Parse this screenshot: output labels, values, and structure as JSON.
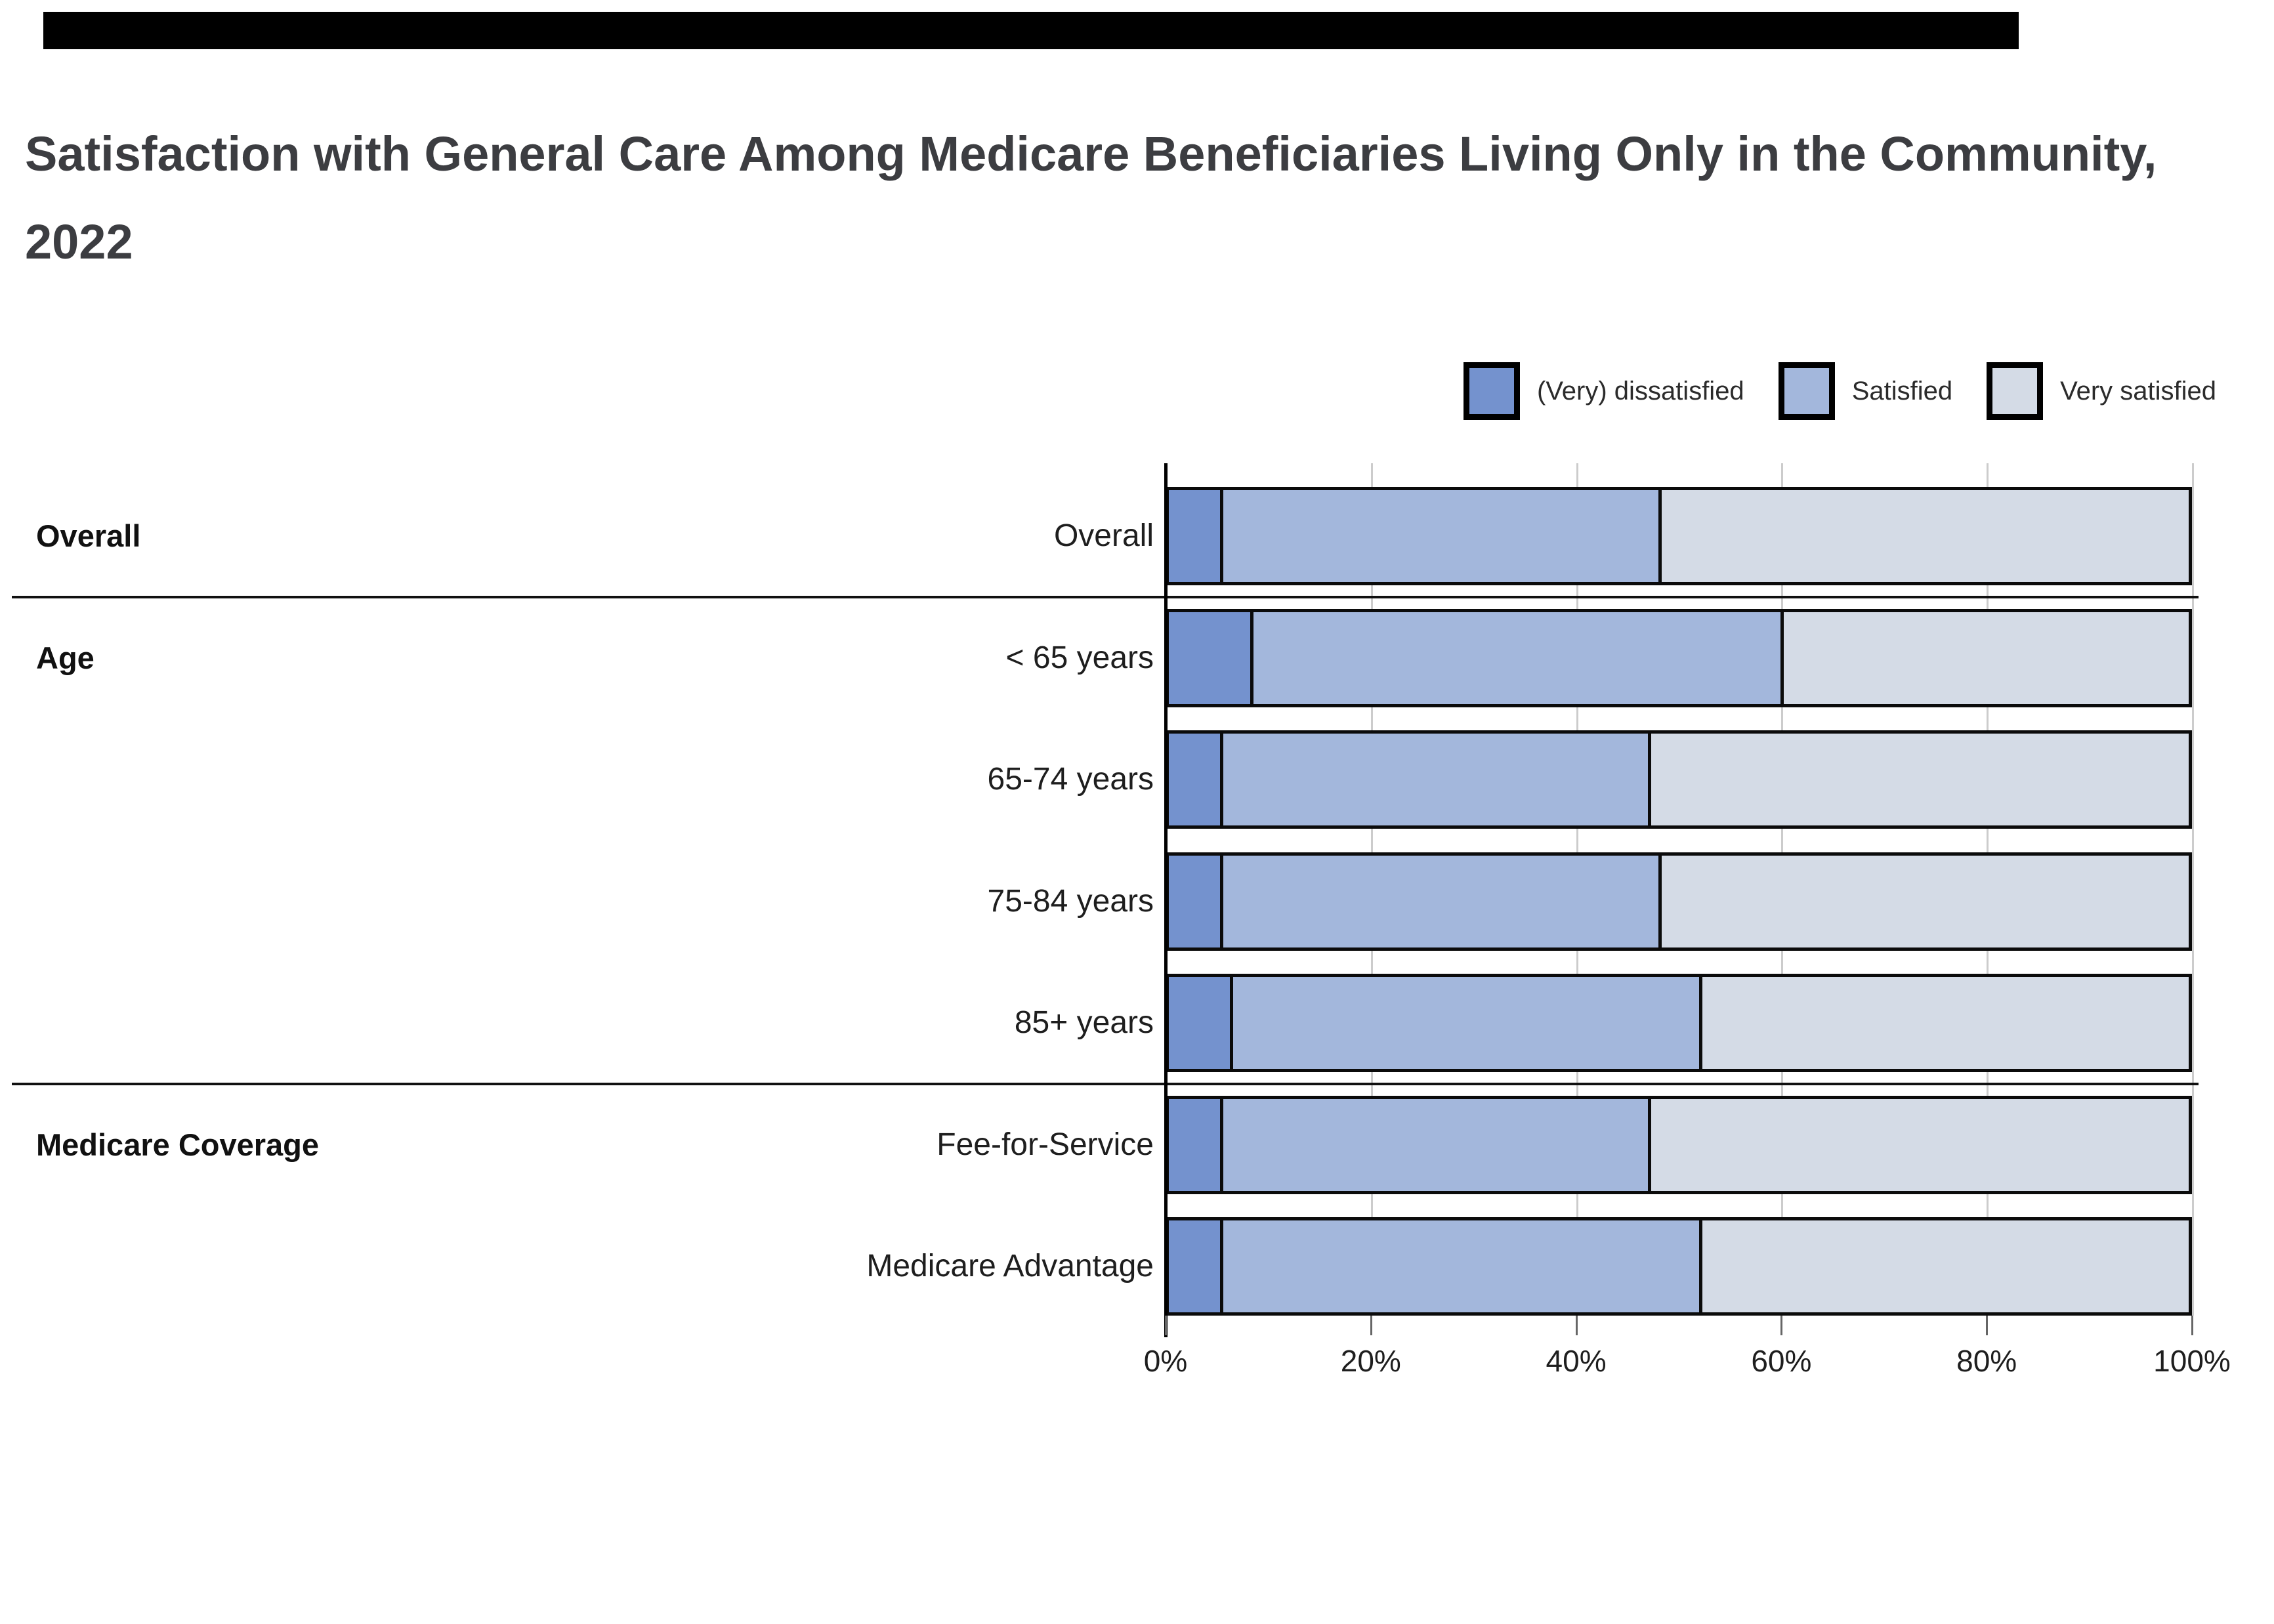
{
  "title": "Satisfaction with General Care Among Medicare Beneficiaries Living Only in the Community, 2022",
  "legend": {
    "items": [
      {
        "label": "(Very) dissatisfied",
        "color": "#7492ce"
      },
      {
        "label": "Satisfied",
        "color": "#a3b7dc"
      },
      {
        "label": "Very satisfied",
        "color": "#d4dbe6"
      }
    ]
  },
  "chart_data": {
    "type": "bar",
    "orientation": "horizontal",
    "stacked": true,
    "title": "Satisfaction with General Care Among Medicare Beneficiaries Living Only in the Community, 2022",
    "series_names": [
      "(Very) dissatisfied",
      "Satisfied",
      "Very satisfied"
    ],
    "series_colors": [
      "#7492ce",
      "#a3b7dc",
      "#d4dbe6"
    ],
    "unit": "%",
    "xlim": [
      0,
      100
    ],
    "x_tick_labels": [
      "0%",
      "20%",
      "40%",
      "60%",
      "80%",
      "100%"
    ],
    "grid": true,
    "legend_position": "top-right",
    "groups": [
      {
        "group_label": "Overall",
        "rows": [
          {
            "label": "Overall",
            "values": [
              5,
              43,
              52
            ]
          }
        ]
      },
      {
        "group_label": "Age",
        "rows": [
          {
            "label": "< 65 years",
            "values": [
              8,
              52,
              40
            ]
          },
          {
            "label": "65-74 years",
            "values": [
              5,
              42,
              53
            ]
          },
          {
            "label": "75-84 years",
            "values": [
              5,
              43,
              52
            ]
          },
          {
            "label": "85+ years",
            "values": [
              6,
              46,
              48
            ]
          }
        ]
      },
      {
        "group_label": "Medicare Coverage",
        "rows": [
          {
            "label": "Fee-for-Service",
            "values": [
              5,
              42,
              53
            ]
          },
          {
            "label": "Medicare Advantage",
            "values": [
              5,
              47,
              48
            ]
          }
        ]
      }
    ]
  },
  "colors": {
    "background": "#ffffff",
    "top_bar": "#000000",
    "title_text": "#3c3d41",
    "bar_border": "#0b0b0b",
    "gridline": "#cccccc",
    "axis": "#000000",
    "separator": "#111111",
    "tick": "#666666",
    "label_text": "#1e1e1e"
  }
}
